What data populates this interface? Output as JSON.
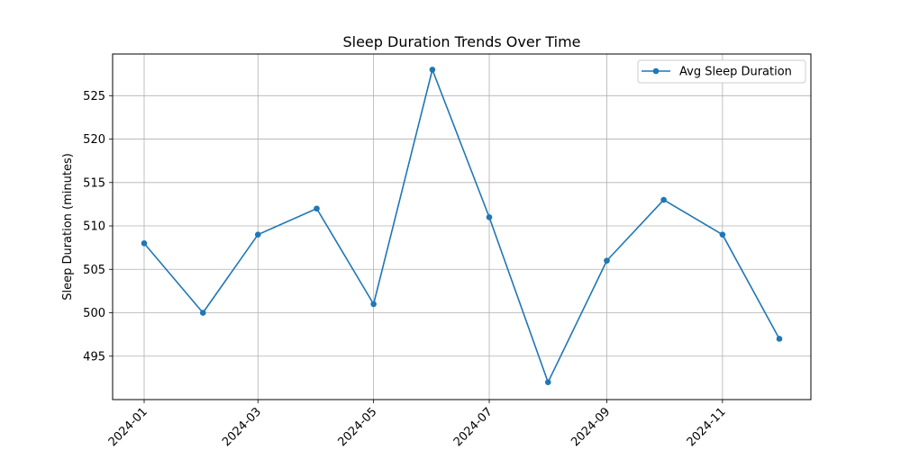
{
  "chart_data": {
    "type": "line",
    "title": "Sleep Duration Trends Over Time",
    "xlabel": "",
    "ylabel": "Sleep Duration (minutes)",
    "x": [
      "2024-01-01",
      "2024-02-01",
      "2024-03-01",
      "2024-04-01",
      "2024-05-01",
      "2024-06-01",
      "2024-07-01",
      "2024-08-01",
      "2024-09-01",
      "2024-10-01",
      "2024-11-01",
      "2024-12-01"
    ],
    "x_tick_labels": [
      "2024-01",
      "2024-03",
      "2024-05",
      "2024-07",
      "2024-09",
      "2024-11"
    ],
    "ylim": [
      490,
      529.8
    ],
    "y_ticks": [
      495,
      500,
      505,
      510,
      515,
      520,
      525
    ],
    "series": [
      {
        "name": "Avg Sleep Duration",
        "color": "#1f77b4",
        "marker": "circle",
        "values": [
          508,
          500,
          509,
          512,
          501,
          528,
          511,
          492,
          506,
          513,
          509,
          497
        ]
      }
    ],
    "grid": true,
    "legend_position": "top-right"
  }
}
